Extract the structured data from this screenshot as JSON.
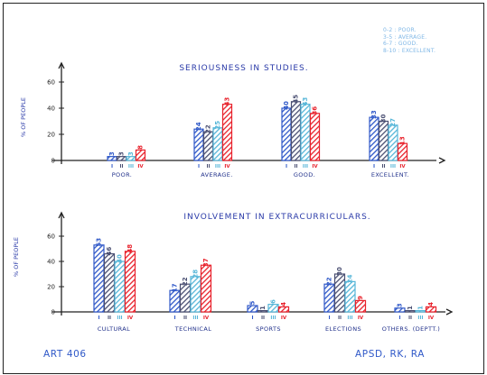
{
  "legend": [
    "0-2 : POOR.",
    "3-5 : AVERAGE.",
    "6-7 : GOOD.",
    "8-10 : EXCELLENT."
  ],
  "footer": {
    "left": "ART 406",
    "right": "APSD, RK, RA"
  },
  "colors": {
    "axis": "#222222",
    "ink": "#2a3aa8",
    "series": [
      "#2f58c8",
      "#4a4f72",
      "#56b6d8",
      "#e8212b"
    ]
  },
  "chart_data": [
    {
      "type": "bar",
      "title": "SERIOUSNESS  IN  STUDIES.",
      "ylabel": "% OF PEOPLE",
      "ylim": [
        0,
        65
      ],
      "yticks": [
        0,
        20,
        40,
        60
      ],
      "series_labels": [
        "I",
        "II",
        "III",
        "IV"
      ],
      "categories": [
        "POOR.",
        "AVERAGE.",
        "GOOD.",
        "EXCELLENT."
      ],
      "series": [
        {
          "values": [
            3,
            24,
            40,
            33
          ]
        },
        {
          "values": [
            3,
            22,
            45,
            30
          ]
        },
        {
          "values": [
            3,
            25,
            43,
            27
          ]
        },
        {
          "values": [
            8,
            43,
            36,
            13
          ]
        }
      ]
    },
    {
      "type": "bar",
      "title": "INVOLVEMENT  IN  EXTRACURRICULARS.",
      "ylabel": "% OF PEOPLE",
      "ylim": [
        0,
        65
      ],
      "yticks": [
        0,
        20,
        40,
        60
      ],
      "series_labels": [
        "I",
        "II",
        "III",
        "IV"
      ],
      "categories": [
        "CULTURAL",
        "TECHNICAL",
        "SPORTS",
        "ELECTIONS",
        "OTHERS. (DEPTT.)"
      ],
      "series": [
        {
          "values": [
            53,
            17,
            5,
            22,
            3
          ]
        },
        {
          "values": [
            46,
            22,
            1,
            30,
            1
          ]
        },
        {
          "values": [
            40,
            28,
            6,
            24,
            1
          ]
        },
        {
          "values": [
            48,
            37,
            4,
            9,
            4
          ]
        }
      ]
    }
  ]
}
